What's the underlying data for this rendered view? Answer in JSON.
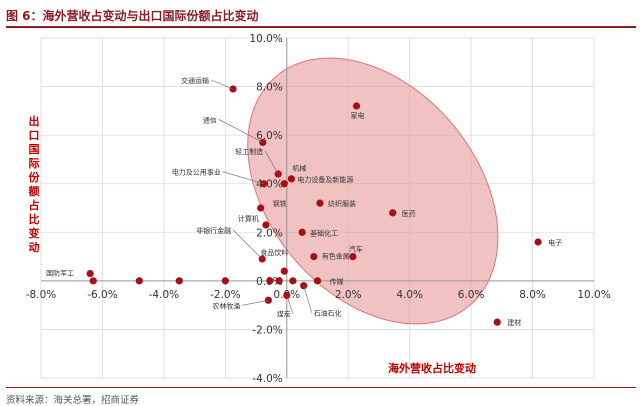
{
  "header": {
    "title": "图 6：海外营收占变动与出口国际份额占比变动"
  },
  "source": "资料来源：海关总署，招商证券",
  "colors": {
    "accent": "#8b1d22",
    "point": "#a80f14",
    "ellipse": "#e99c9c",
    "axis_label": "#c00000",
    "grid": "#d9d9d9"
  },
  "chart_data": {
    "type": "scatter",
    "title": "",
    "xlabel": "海外营收占比变动",
    "ylabel": "出口国际份额占比变动",
    "xlim": [
      -0.08,
      0.1
    ],
    "ylim": [
      -0.04,
      0.1
    ],
    "grid": true,
    "xticks": [
      "-8.0%",
      "-6.0%",
      "-4.0%",
      "-2.0%",
      "0.0%",
      "2.0%",
      "4.0%",
      "6.0%",
      "8.0%",
      "10.0%"
    ],
    "yticks": [
      "-4.0%",
      "-2.0%",
      "0.0%",
      "2.0%",
      "4.0%",
      "6.0%",
      "8.0%",
      "10.0%"
    ],
    "highlight_ellipse": {
      "center": [
        0.028,
        0.037
      ],
      "note": "shaded region"
    },
    "points": [
      {
        "label": "交通运输",
        "x": -0.0175,
        "y": 0.079
      },
      {
        "label": "家电",
        "x": 0.0227,
        "y": 0.072
      },
      {
        "label": "通信",
        "x": -0.0078,
        "y": 0.057
      },
      {
        "label": "轻工制造",
        "x": -0.0028,
        "y": 0.044
      },
      {
        "label": "机械",
        "x": -0.0008,
        "y": 0.04
      },
      {
        "label": "电力设备及新能源",
        "x": 0.0015,
        "y": 0.042
      },
      {
        "label": "电力及公用事业",
        "x": -0.0075,
        "y": 0.04
      },
      {
        "label": "纺织服装",
        "x": 0.0108,
        "y": 0.032
      },
      {
        "label": "钢铁",
        "x": -0.0085,
        "y": 0.03
      },
      {
        "label": "医药",
        "x": 0.0345,
        "y": 0.028
      },
      {
        "label": "计算机",
        "x": -0.0068,
        "y": 0.023
      },
      {
        "label": "基础化工",
        "x": 0.005,
        "y": 0.02
      },
      {
        "label": "电子",
        "x": 0.0818,
        "y": 0.016
      },
      {
        "label": "汽车",
        "x": 0.0215,
        "y": 0.01
      },
      {
        "label": "有色金属",
        "x": 0.0088,
        "y": 0.01
      },
      {
        "label": "非银行金融",
        "x": -0.008,
        "y": 0.009
      },
      {
        "label": "食品饮料",
        "x": -0.0008,
        "y": 0.004
      },
      {
        "label": "国防军工",
        "x": -0.064,
        "y": 0.003
      },
      {
        "label": "",
        "x": -0.063,
        "y": 0.0
      },
      {
        "label": "",
        "x": -0.048,
        "y": 0.0
      },
      {
        "label": "",
        "x": -0.035,
        "y": 0.0
      },
      {
        "label": "",
        "x": -0.02,
        "y": 0.0
      },
      {
        "label": "",
        "x": -0.0055,
        "y": 0.0
      },
      {
        "label": "",
        "x": -0.0025,
        "y": 0.0
      },
      {
        "label": "",
        "x": 0.002,
        "y": 0.0
      },
      {
        "label": "传媒",
        "x": 0.01,
        "y": 0.0
      },
      {
        "label": "农林牧渔",
        "x": -0.006,
        "y": -0.008
      },
      {
        "label": "煤炭",
        "x": 0.0,
        "y": -0.006
      },
      {
        "label": "石油石化",
        "x": 0.0055,
        "y": -0.002
      },
      {
        "label": "建材",
        "x": 0.0685,
        "y": -0.017
      }
    ]
  }
}
